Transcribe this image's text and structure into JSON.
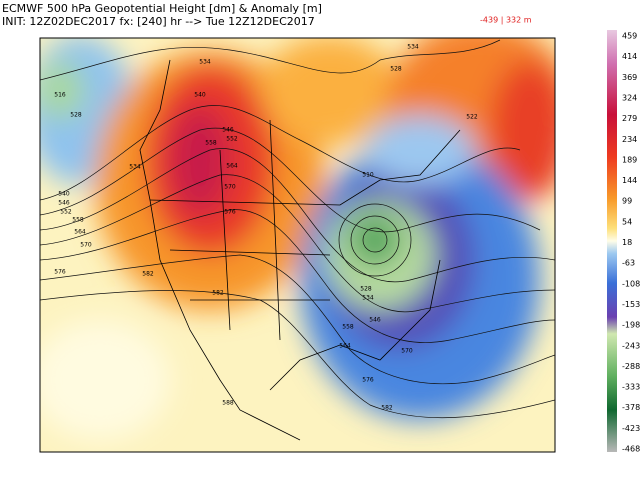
{
  "header": {
    "title": "ECMWF 500 hPa Geopotential Height [dm] & Anomaly [m]",
    "init": "INIT: 12Z02DEC2017 fx: [240] hr --> Tue 12Z12DEC2017",
    "range": "-439 | 332 m"
  },
  "colorbar": {
    "ticks": [
      459,
      414,
      369,
      324,
      279,
      234,
      189,
      144,
      99,
      54,
      18,
      -63,
      -108,
      -153,
      -198,
      -243,
      -288,
      -333,
      -378,
      -423,
      -468
    ]
  },
  "contour_labels": [
    516,
    528,
    534,
    540,
    546,
    552,
    558,
    564,
    570,
    576,
    534,
    540,
    546,
    552,
    558,
    564,
    570,
    576,
    582,
    582,
    534,
    528,
    522,
    510,
    528,
    534,
    546,
    558,
    564,
    570,
    576,
    582,
    588
  ]
}
